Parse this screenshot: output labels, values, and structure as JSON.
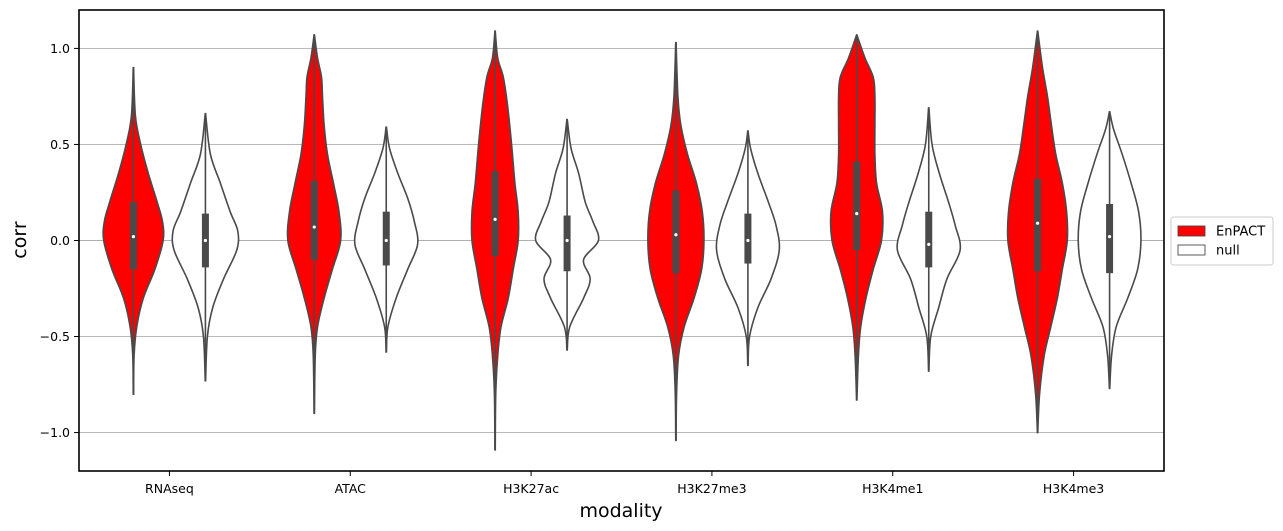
{
  "chart_data": {
    "type": "violin",
    "title": "",
    "xlabel": "modality",
    "ylabel": "corr",
    "ylim": [
      -1.2,
      1.2
    ],
    "yticks": [
      1.0,
      0.5,
      0.0,
      -0.5,
      -1.0
    ],
    "ytick_labels": [
      "1.0",
      "0.5",
      "0.0",
      "−0.5",
      "−1.0"
    ],
    "grid": "horizontal",
    "legend": {
      "placement": "right",
      "entries": [
        "EnPACT",
        "null"
      ]
    },
    "categories": [
      "RNAseq",
      "ATAC",
      "H3K27ac",
      "H3K27me3",
      "H3K4me1",
      "H3K4me3"
    ],
    "series": [
      {
        "name": "EnPACT",
        "color": "#ff0000",
        "stats": [
          {
            "min": -0.8,
            "q1": -0.15,
            "median": 0.02,
            "q3": 0.2,
            "max": 0.9,
            "density": [
              [
                -0.8,
                0.005
              ],
              [
                -0.6,
                0.02
              ],
              [
                -0.45,
                0.1
              ],
              [
                -0.3,
                0.3
              ],
              [
                -0.15,
                0.65
              ],
              [
                0.0,
                0.9
              ],
              [
                0.1,
                0.88
              ],
              [
                0.2,
                0.72
              ],
              [
                0.35,
                0.45
              ],
              [
                0.5,
                0.22
              ],
              [
                0.65,
                0.06
              ],
              [
                0.9,
                0.005
              ]
            ]
          },
          {
            "min": -0.9,
            "q1": -0.1,
            "median": 0.07,
            "q3": 0.31,
            "max": 1.07,
            "density": [
              [
                -0.9,
                0.005
              ],
              [
                -0.6,
                0.03
              ],
              [
                -0.45,
                0.1
              ],
              [
                -0.3,
                0.3
              ],
              [
                -0.15,
                0.55
              ],
              [
                0.0,
                0.8
              ],
              [
                0.15,
                0.75
              ],
              [
                0.3,
                0.58
              ],
              [
                0.45,
                0.4
              ],
              [
                0.6,
                0.3
              ],
              [
                0.75,
                0.25
              ],
              [
                0.85,
                0.22
              ],
              [
                0.95,
                0.1
              ],
              [
                1.07,
                0.005
              ]
            ]
          },
          {
            "min": -1.09,
            "q1": -0.08,
            "median": 0.11,
            "q3": 0.36,
            "max": 1.09,
            "density": [
              [
                -1.09,
                0.005
              ],
              [
                -0.8,
                0.02
              ],
              [
                -0.6,
                0.08
              ],
              [
                -0.45,
                0.18
              ],
              [
                -0.3,
                0.4
              ],
              [
                -0.15,
                0.55
              ],
              [
                0.0,
                0.7
              ],
              [
                0.15,
                0.7
              ],
              [
                0.3,
                0.6
              ],
              [
                0.5,
                0.5
              ],
              [
                0.7,
                0.38
              ],
              [
                0.85,
                0.25
              ],
              [
                0.95,
                0.08
              ],
              [
                1.09,
                0.005
              ]
            ]
          },
          {
            "min": -1.04,
            "q1": -0.17,
            "median": 0.03,
            "q3": 0.26,
            "max": 1.03,
            "density": [
              [
                -1.04,
                0.005
              ],
              [
                -0.8,
                0.02
              ],
              [
                -0.6,
                0.08
              ],
              [
                -0.45,
                0.25
              ],
              [
                -0.3,
                0.55
              ],
              [
                -0.15,
                0.78
              ],
              [
                0.0,
                0.85
              ],
              [
                0.15,
                0.8
              ],
              [
                0.3,
                0.62
              ],
              [
                0.45,
                0.35
              ],
              [
                0.6,
                0.15
              ],
              [
                0.75,
                0.06
              ],
              [
                1.03,
                0.005
              ]
            ]
          },
          {
            "min": -0.83,
            "q1": -0.05,
            "median": 0.14,
            "q3": 0.41,
            "max": 1.07,
            "density": [
              [
                -0.83,
                0.005
              ],
              [
                -0.6,
                0.05
              ],
              [
                -0.45,
                0.12
              ],
              [
                -0.3,
                0.28
              ],
              [
                -0.15,
                0.5
              ],
              [
                0.0,
                0.75
              ],
              [
                0.15,
                0.78
              ],
              [
                0.3,
                0.6
              ],
              [
                0.45,
                0.55
              ],
              [
                0.6,
                0.55
              ],
              [
                0.75,
                0.55
              ],
              [
                0.85,
                0.5
              ],
              [
                0.95,
                0.25
              ],
              [
                1.07,
                0.005
              ]
            ]
          },
          {
            "min": -1.0,
            "q1": -0.16,
            "median": 0.09,
            "q3": 0.32,
            "max": 1.09,
            "density": [
              [
                -1.0,
                0.005
              ],
              [
                -0.8,
                0.06
              ],
              [
                -0.6,
                0.2
              ],
              [
                -0.45,
                0.4
              ],
              [
                -0.3,
                0.6
              ],
              [
                -0.15,
                0.75
              ],
              [
                0.0,
                0.9
              ],
              [
                0.15,
                0.88
              ],
              [
                0.3,
                0.75
              ],
              [
                0.45,
                0.55
              ],
              [
                0.6,
                0.42
              ],
              [
                0.75,
                0.3
              ],
              [
                0.9,
                0.15
              ],
              [
                1.09,
                0.005
              ]
            ]
          }
        ]
      },
      {
        "name": "null",
        "color": "#ffffff",
        "stats": [
          {
            "min": -0.73,
            "q1": -0.14,
            "median": 0.0,
            "q3": 0.14,
            "max": 0.66,
            "density": [
              [
                -0.73,
                0.005
              ],
              [
                -0.5,
                0.06
              ],
              [
                -0.35,
                0.22
              ],
              [
                -0.2,
                0.55
              ],
              [
                -0.05,
                0.95
              ],
              [
                0.05,
                0.98
              ],
              [
                0.15,
                0.75
              ],
              [
                0.3,
                0.45
              ],
              [
                0.45,
                0.15
              ],
              [
                0.66,
                0.005
              ]
            ]
          },
          {
            "min": -0.58,
            "q1": -0.13,
            "median": 0.0,
            "q3": 0.15,
            "max": 0.59,
            "density": [
              [
                -0.58,
                0.005
              ],
              [
                -0.45,
                0.05
              ],
              [
                -0.3,
                0.3
              ],
              [
                -0.15,
                0.65
              ],
              [
                -0.02,
                0.95
              ],
              [
                0.1,
                0.85
              ],
              [
                0.22,
                0.65
              ],
              [
                0.35,
                0.35
              ],
              [
                0.48,
                0.1
              ],
              [
                0.59,
                0.005
              ]
            ]
          },
          {
            "min": -0.57,
            "q1": -0.16,
            "median": 0.0,
            "q3": 0.13,
            "max": 0.63,
            "density": [
              [
                -0.57,
                0.005
              ],
              [
                -0.45,
                0.08
              ],
              [
                -0.3,
                0.5
              ],
              [
                -0.2,
                0.7
              ],
              [
                -0.1,
                0.5
              ],
              [
                0.0,
                0.95
              ],
              [
                0.1,
                0.78
              ],
              [
                0.2,
                0.55
              ],
              [
                0.35,
                0.35
              ],
              [
                0.48,
                0.12
              ],
              [
                0.63,
                0.005
              ]
            ]
          },
          {
            "min": -0.65,
            "q1": -0.12,
            "median": 0.0,
            "q3": 0.14,
            "max": 0.57,
            "density": [
              [
                -0.65,
                0.005
              ],
              [
                -0.5,
                0.05
              ],
              [
                -0.35,
                0.3
              ],
              [
                -0.2,
                0.7
              ],
              [
                -0.05,
                0.95
              ],
              [
                0.08,
                0.85
              ],
              [
                0.2,
                0.62
              ],
              [
                0.35,
                0.3
              ],
              [
                0.48,
                0.08
              ],
              [
                0.57,
                0.005
              ]
            ]
          },
          {
            "min": -0.68,
            "q1": -0.14,
            "median": -0.02,
            "q3": 0.15,
            "max": 0.69,
            "density": [
              [
                -0.68,
                0.005
              ],
              [
                -0.5,
                0.06
              ],
              [
                -0.35,
                0.3
              ],
              [
                -0.2,
                0.55
              ],
              [
                -0.05,
                0.95
              ],
              [
                0.08,
                0.8
              ],
              [
                0.2,
                0.6
              ],
              [
                0.35,
                0.32
              ],
              [
                0.5,
                0.1
              ],
              [
                0.69,
                0.005
              ]
            ]
          },
          {
            "min": -0.77,
            "q1": -0.17,
            "median": 0.02,
            "q3": 0.19,
            "max": 0.67,
            "density": [
              [
                -0.77,
                0.005
              ],
              [
                -0.6,
                0.06
              ],
              [
                -0.45,
                0.2
              ],
              [
                -0.3,
                0.55
              ],
              [
                -0.15,
                0.85
              ],
              [
                0.0,
                0.95
              ],
              [
                0.15,
                0.88
              ],
              [
                0.3,
                0.65
              ],
              [
                0.45,
                0.38
              ],
              [
                0.58,
                0.12
              ],
              [
                0.67,
                0.005
              ]
            ]
          }
        ]
      }
    ]
  }
}
